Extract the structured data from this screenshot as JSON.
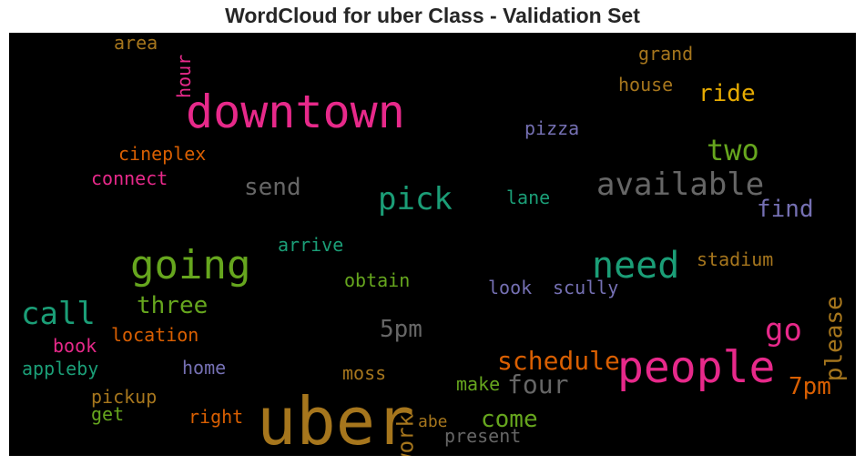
{
  "chart_data": {
    "type": "wordcloud",
    "title": "WordCloud for uber Class - Validation Set",
    "words": [
      {
        "text": "uber",
        "color": "#a6761d"
      },
      {
        "text": "downtown",
        "color": "#e7298a"
      },
      {
        "text": "people",
        "color": "#e7298a"
      },
      {
        "text": "going",
        "color": "#66a61e"
      },
      {
        "text": "need",
        "color": "#1b9e77"
      },
      {
        "text": "available",
        "color": "#666666"
      },
      {
        "text": "call",
        "color": "#1b9e77"
      },
      {
        "text": "pick",
        "color": "#1b9e77"
      },
      {
        "text": "go",
        "color": "#e7298a"
      },
      {
        "text": "two",
        "color": "#66a61e"
      },
      {
        "text": "schedule",
        "color": "#d95f02"
      },
      {
        "text": "four",
        "color": "#666666"
      },
      {
        "text": "three",
        "color": "#66a61e"
      },
      {
        "text": "send",
        "color": "#666666"
      },
      {
        "text": "5pm",
        "color": "#666666"
      },
      {
        "text": "come",
        "color": "#66a61e"
      },
      {
        "text": "work",
        "color": "#a6761d"
      },
      {
        "text": "please",
        "color": "#a6761d"
      },
      {
        "text": "ride",
        "color": "#e6ab02"
      },
      {
        "text": "find",
        "color": "#7570b3"
      },
      {
        "text": "7pm",
        "color": "#d95f02"
      },
      {
        "text": "house",
        "color": "#a6761d"
      },
      {
        "text": "grand",
        "color": "#a6761d"
      },
      {
        "text": "cineplex",
        "color": "#d95f02"
      },
      {
        "text": "connect",
        "color": "#e7298a"
      },
      {
        "text": "pizza",
        "color": "#7570b3"
      },
      {
        "text": "lane",
        "color": "#1b9e77"
      },
      {
        "text": "arrive",
        "color": "#1b9e77"
      },
      {
        "text": "obtain",
        "color": "#66a61e"
      },
      {
        "text": "stadium",
        "color": "#a6761d"
      },
      {
        "text": "look",
        "color": "#7570b3"
      },
      {
        "text": "scully",
        "color": "#7570b3"
      },
      {
        "text": "location",
        "color": "#d95f02"
      },
      {
        "text": "book",
        "color": "#e7298a"
      },
      {
        "text": "appleby",
        "color": "#1b9e77"
      },
      {
        "text": "home",
        "color": "#7570b3"
      },
      {
        "text": "moss",
        "color": "#a6761d"
      },
      {
        "text": "make",
        "color": "#66a61e"
      },
      {
        "text": "pickup",
        "color": "#a6761d"
      },
      {
        "text": "get",
        "color": "#66a61e"
      },
      {
        "text": "right",
        "color": "#d95f02"
      },
      {
        "text": "abe",
        "color": "#a6761d"
      },
      {
        "text": "present",
        "color": "#666666"
      },
      {
        "text": "area",
        "color": "#a6761d"
      },
      {
        "text": "hour",
        "color": "#e7298a"
      }
    ]
  }
}
